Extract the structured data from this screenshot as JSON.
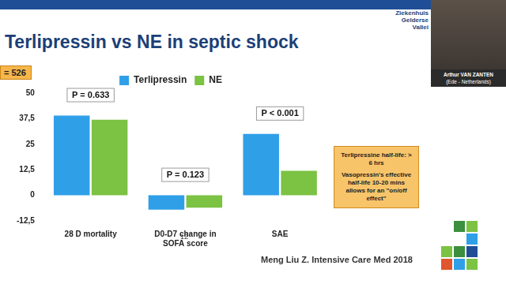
{
  "chart_data": {
    "type": "bar",
    "title": "Terlipressin vs NE in septic shock",
    "categories": [
      "28 D mortality",
      "D0-D7 change in SOFA score",
      "SAE"
    ],
    "series": [
      {
        "name": "Terlipressin",
        "color": "#2f9fe8",
        "values": [
          39,
          -7,
          30
        ]
      },
      {
        "name": "NE",
        "color": "#7cc243",
        "values": [
          37,
          -6,
          12
        ]
      }
    ],
    "ylim": [
      -12.5,
      50
    ],
    "yticks": [
      {
        "value": -12.5,
        "label": "-12,5"
      },
      0,
      {
        "value": 12.5,
        "label": "12,5"
      },
      25,
      {
        "value": 37.5,
        "label": "37,5"
      },
      50
    ],
    "grid": false,
    "legend": "top",
    "annotations": [
      {
        "category": "28 D mortality",
        "text": "P = 0.633"
      },
      {
        "category": "D0-D7 change in SOFA score",
        "text": "P = 0.123"
      },
      {
        "category": "SAE",
        "text": "P < 0.001"
      }
    ]
  },
  "slide": {
    "badge": "= 526",
    "note": [
      "Terlipressine half-life: > 6 hrs",
      "Vasopressin's effective half-life 10-20 mins allows for an \"on/off effect\""
    ],
    "page": "12",
    "citation": "Meng Liu Z. Intensive Care Med 2018",
    "logo": "Ziekenhuis Gelderse Vallei",
    "speaker": {
      "name": "Arthur VAN ZANTEN",
      "place": "(Ede - Netherlands)"
    }
  }
}
